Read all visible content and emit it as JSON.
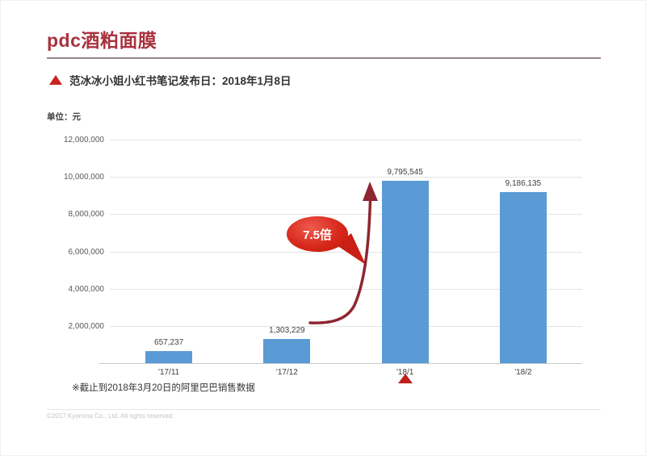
{
  "header": {
    "title": "pdc酒粕面膜",
    "title_color": "#a8323e"
  },
  "subtitle": {
    "icon": "triangle-up-icon",
    "icon_color": "#c9241e",
    "text": "范冰冰小姐小红书笔记发布日：2018年1月8日"
  },
  "chart_data": {
    "type": "bar",
    "unit_label": "单位：元",
    "categories": [
      "'17/11",
      "'17/12",
      "'18/1",
      "'18/2"
    ],
    "values": [
      657237,
      1303229,
      9795545,
      9186135
    ],
    "value_labels": [
      "657,237",
      "1,303,229",
      "9,795,545",
      "9,186,135"
    ],
    "yticks": [
      2000000,
      4000000,
      6000000,
      8000000,
      10000000,
      12000000
    ],
    "ylim": [
      0,
      12000000
    ],
    "xlabel": "",
    "ylabel": "单位：元",
    "grid": true,
    "legend": "none",
    "bar_color": "#5b9bd5",
    "marker_category_index": 2,
    "marker_icon": "triangle-up-icon",
    "marker_color": "#c0201a"
  },
  "annotation": {
    "label": "7.5倍",
    "bubble_color": "#d7281c",
    "arrow_color": "#8e2630",
    "text_color": "#ffffff"
  },
  "footnote": {
    "text": "※截止到2018年3月20日的阿里巴巴销售数据"
  },
  "footer": {
    "copyright": "©2017 Kyomina Co., Ltd. All rights reserved."
  }
}
